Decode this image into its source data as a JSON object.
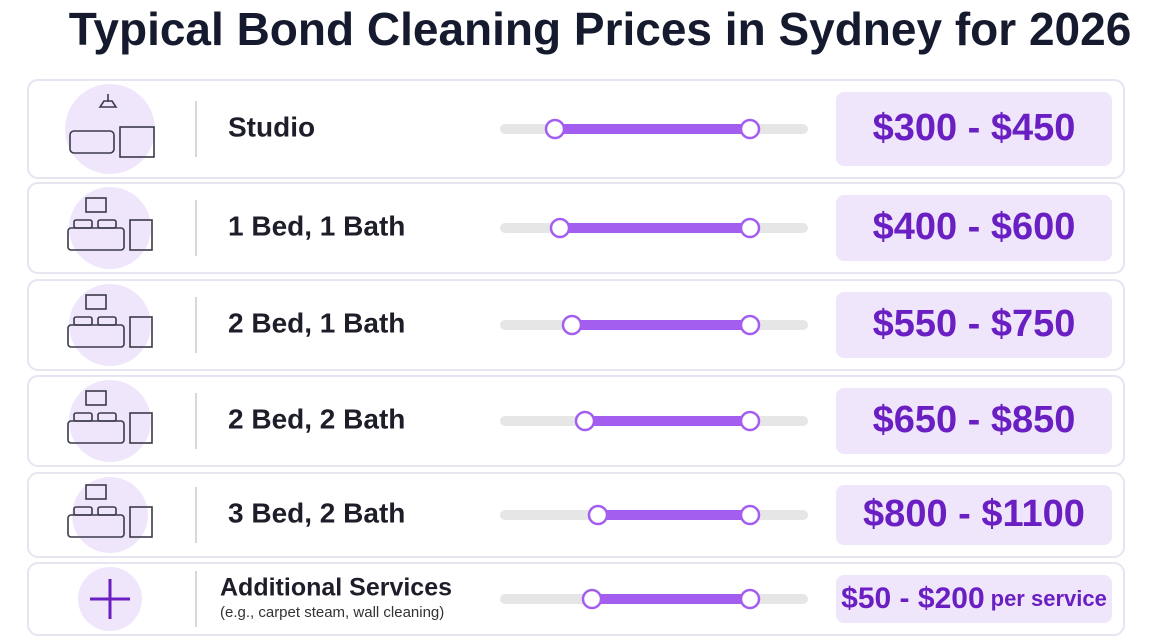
{
  "header": {
    "title": "Typical Bond Cleaning Prices in Sydney for 2026"
  },
  "rows": [
    {
      "label": "Studio",
      "price": "$300 - $450"
    },
    {
      "label": "1 Bed, 1 Bath",
      "price": "$400 - $600"
    },
    {
      "label": "2 Bed, 1 Bath",
      "price": "$550 - $750"
    },
    {
      "label": "2 Bed, 2 Bath",
      "price": "$650 - $850"
    },
    {
      "label": "3 Bed, 2 Bath",
      "price": "$800 - $1100"
    },
    {
      "label": "Additional Services",
      "sublabel": "(e.g., carpet steam, wall cleaning)",
      "price": "$50 - $200",
      "price_suffix": "per service"
    }
  ]
}
